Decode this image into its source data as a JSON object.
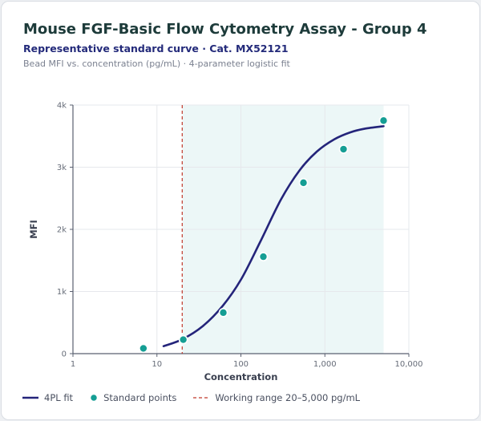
{
  "header": {
    "title": "Mouse FGF-Basic Flow Cytometry Assay - Group 4",
    "subtitle": "Representative standard curve · Cat. MX52121",
    "note": "Bead MFI vs. concentration (pg/mL) · 4-parameter logistic fit"
  },
  "legend": {
    "fit_label": "4PL fit",
    "points_label": "Standard points",
    "range_label": "Working range 20–5,000 pg/mL"
  },
  "colors": {
    "fit": "#24247a",
    "points": "#159e94",
    "range_line": "#c0392b",
    "range_band": "#ecf7f7",
    "grid": "#e6e8ec",
    "axis": "#5a6070"
  },
  "chart_data": {
    "type": "scatter",
    "xlabel": "Concentration",
    "ylabel": "MFI",
    "x_scale": "log",
    "xlim": [
      1,
      10000
    ],
    "ylim": [
      0,
      4000
    ],
    "x_ticks": [
      1,
      10,
      100,
      1000,
      10000
    ],
    "x_tick_labels": [
      "1",
      "10",
      "100",
      "1,000",
      "10,000"
    ],
    "y_ticks": [
      0,
      1000,
      2000,
      3000,
      4000
    ],
    "y_tick_labels": [
      "0",
      "1k",
      "2k",
      "3k",
      "4k"
    ],
    "grid": true,
    "working_range": [
      20,
      5000
    ],
    "series": [
      {
        "name": "Standard points",
        "x": [
          6.9,
          20.6,
          61.7,
          185,
          556,
          1667,
          5000
        ],
        "y": [
          85,
          225,
          660,
          1560,
          2750,
          3290,
          3750
        ]
      }
    ],
    "fit": {
      "name": "4PL fit",
      "x_range": [
        12,
        5000
      ],
      "x": [
        12,
        20,
        35,
        60,
        100,
        170,
        300,
        500,
        800,
        1300,
        2000,
        3000,
        5000
      ],
      "y": [
        120,
        230,
        440,
        760,
        1190,
        1800,
        2480,
        2950,
        3250,
        3450,
        3560,
        3620,
        3660
      ]
    },
    "legend_position": "bottom"
  }
}
